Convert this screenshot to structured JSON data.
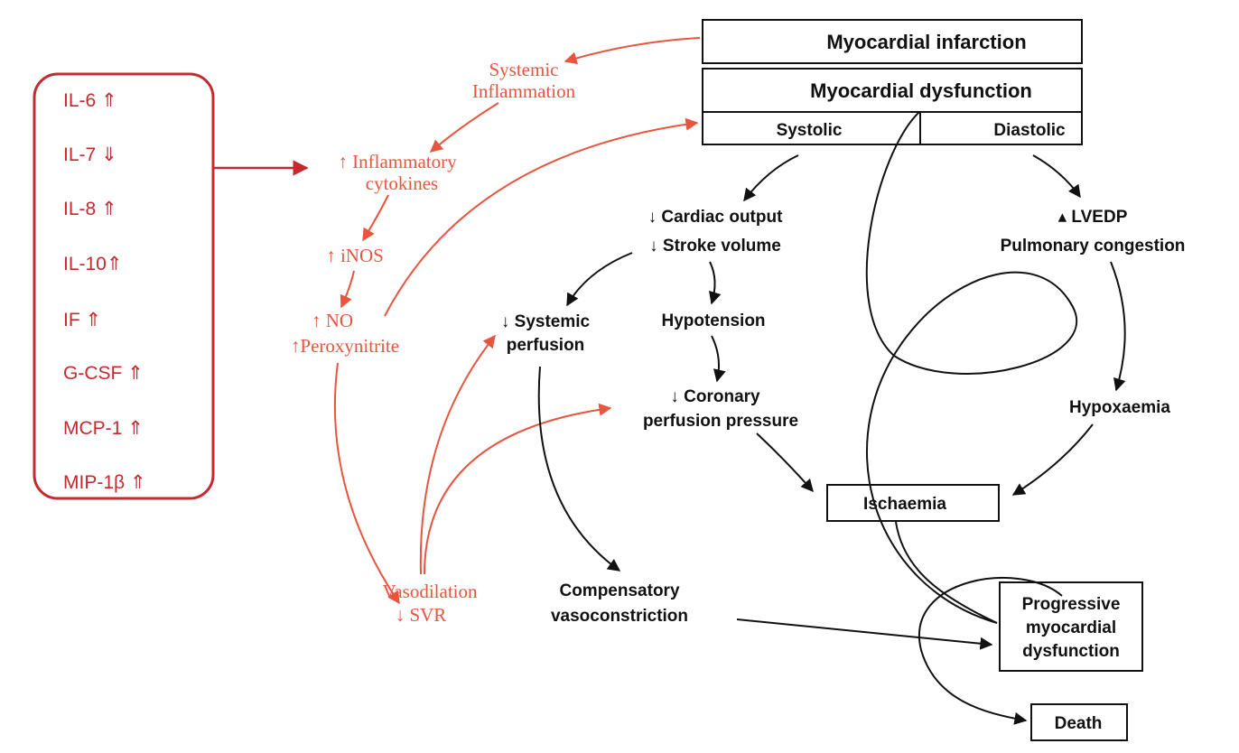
{
  "cytokines": {
    "items": [
      {
        "label": "IL-6",
        "arrow": "⇑"
      },
      {
        "label": "IL-7",
        "arrow": "⇓"
      },
      {
        "label": "IL-8",
        "arrow": "⇑"
      },
      {
        "label": "IL-10",
        "arrow": "⇑"
      },
      {
        "label": "IF",
        "arrow": "⇑"
      },
      {
        "label": "G-CSF",
        "arrow": "⇑"
      },
      {
        "label": "MCP-1",
        "arrow": "⇑"
      },
      {
        "label": "MIP-1β",
        "arrow": "⇑"
      }
    ]
  },
  "inflammation": {
    "systemic_line1": "Systemic",
    "systemic_line2": "Inflammation",
    "cytokines_line1": "↑ Inflammatory",
    "cytokines_line2": "cytokines",
    "inos": "↑ iNOS",
    "no": "↑ NO",
    "peroxynitrite": "↑Peroxynitrite",
    "vasodilation": "Vasodilation",
    "svr": "↓ SVR"
  },
  "cardiac": {
    "infarction": "Myocardial infarction",
    "dysfunction": "Myocardial dysfunction",
    "systolic": "Systolic",
    "diastolic": "Diastolic",
    "cardiac_output": "↓ Cardiac output",
    "stroke_volume": "↓ Stroke volume",
    "lvedp": "▴ LVEDP",
    "pulmonary": "Pulmonary congestion",
    "systemic_perf_line1": "↓ Systemic",
    "systemic_perf_line2": "perfusion",
    "hypotension": "Hypotension",
    "coronary_line1": "↓ Coronary",
    "coronary_line2": "perfusion pressure",
    "hypoxaemia": "Hypoxaemia",
    "ischaemia": "Ischaemia",
    "compensatory_line1": "Compensatory",
    "compensatory_line2": "vasoconstriction",
    "progressive_line1": "Progressive",
    "progressive_line2": "myocardial",
    "progressive_line3": "dysfunction",
    "death": "Death"
  },
  "colors": {
    "inflammation": "#e8553f",
    "cytokine_box": "#c42a2f",
    "cardiac": "#111111"
  }
}
